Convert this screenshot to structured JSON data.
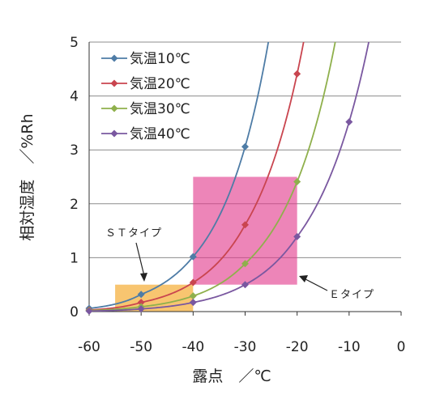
{
  "chart_data": {
    "type": "line",
    "xlabel": "露点　／℃",
    "ylabel": "相対湿度　／%Rh",
    "xlim": [
      -60,
      0
    ],
    "ylim": [
      0,
      5
    ],
    "x_ticks": [
      "-60",
      "-50",
      "-40",
      "-30",
      "-20",
      "-10",
      "0"
    ],
    "y_ticks": [
      "0",
      "1",
      "2",
      "3",
      "4",
      "5"
    ],
    "grid": "horizontal",
    "legend_position": "top-left",
    "series": [
      {
        "name": "気温10℃",
        "color": "#4e7ca6",
        "x": [
          -60,
          -50,
          -40,
          -30
        ],
        "y": [
          0.06,
          0.32,
          1.02,
          3.06
        ]
      },
      {
        "name": "気温20℃",
        "color": "#c9454f",
        "x": [
          -60,
          -50,
          -40,
          -30,
          -20
        ],
        "y": [
          0.03,
          0.17,
          0.54,
          1.61,
          4.41
        ]
      },
      {
        "name": "気温30℃",
        "color": "#8fb04c",
        "x": [
          -60,
          -50,
          -40,
          -30,
          -20
        ],
        "y": [
          0.02,
          0.09,
          0.29,
          0.89,
          2.41
        ]
      },
      {
        "name": "気温40℃",
        "color": "#7a58a0",
        "x": [
          -60,
          -50,
          -40,
          -30,
          -20,
          -10
        ],
        "y": [
          0.01,
          0.05,
          0.17,
          0.5,
          1.39,
          3.52
        ]
      }
    ],
    "regions": [
      {
        "label": "ＳＴタイプ",
        "color": "#f5a623",
        "x": [
          -55,
          -40
        ],
        "y": [
          0,
          0.5
        ]
      },
      {
        "label": "Ｅタイプ",
        "color": "#e23a8c",
        "x": [
          -40,
          -20
        ],
        "y": [
          0.5,
          2.5
        ]
      }
    ]
  }
}
